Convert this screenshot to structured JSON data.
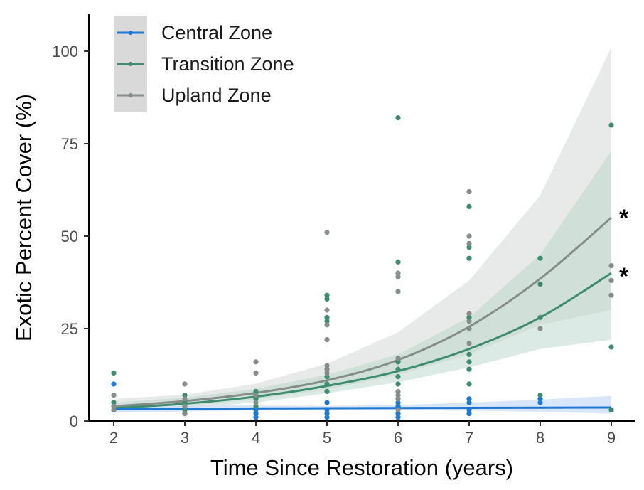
{
  "chart_data": {
    "type": "scatter",
    "title": "",
    "xlabel": "Time Since Restoration (years)",
    "ylabel": "Exotic Percent Cover (%)",
    "xlim": [
      1.7,
      9.3
    ],
    "ylim": [
      0,
      108
    ],
    "x_ticks": [
      2,
      3,
      4,
      5,
      6,
      7,
      8,
      9
    ],
    "y_ticks": [
      0,
      25,
      50,
      75,
      100
    ],
    "grid": false,
    "legend_position": "top-left",
    "series": [
      {
        "name": "Central Zone",
        "color": "#1f78d1",
        "points": [
          [
            2,
            10
          ],
          [
            2,
            3
          ],
          [
            3,
            2
          ],
          [
            3,
            3
          ],
          [
            4,
            1
          ],
          [
            4,
            2
          ],
          [
            4,
            3
          ],
          [
            5,
            1
          ],
          [
            5,
            2
          ],
          [
            5,
            3
          ],
          [
            5,
            5
          ],
          [
            5,
            10
          ],
          [
            6,
            1
          ],
          [
            6,
            2
          ],
          [
            6,
            4
          ],
          [
            6,
            5
          ],
          [
            6,
            16
          ],
          [
            7,
            2
          ],
          [
            7,
            3
          ],
          [
            7,
            5
          ],
          [
            7,
            6
          ],
          [
            8,
            5
          ],
          [
            8,
            6
          ],
          [
            9,
            3
          ]
        ],
        "fit": [
          [
            2,
            3.3
          ],
          [
            3,
            3.35
          ],
          [
            4,
            3.4
          ],
          [
            5,
            3.45
          ],
          [
            6,
            3.5
          ],
          [
            7,
            3.55
          ],
          [
            8,
            3.6
          ],
          [
            9,
            3.65
          ]
        ],
        "ci_low": [
          [
            2,
            2.2
          ],
          [
            3,
            2.6
          ],
          [
            4,
            2.9
          ],
          [
            5,
            3.0
          ],
          [
            6,
            3.0
          ],
          [
            7,
            2.8
          ],
          [
            8,
            2.5
          ],
          [
            9,
            2.0
          ]
        ],
        "ci_high": [
          [
            2,
            4.8
          ],
          [
            3,
            4.4
          ],
          [
            4,
            4.2
          ],
          [
            5,
            4.1
          ],
          [
            6,
            4.3
          ],
          [
            7,
            5.0
          ],
          [
            8,
            5.8
          ],
          [
            9,
            6.8
          ]
        ]
      },
      {
        "name": "Transition Zone",
        "color": "#3d8c6e",
        "points": [
          [
            2,
            13
          ],
          [
            2,
            5
          ],
          [
            3,
            7
          ],
          [
            3,
            5
          ],
          [
            3,
            3
          ],
          [
            4,
            8
          ],
          [
            4,
            6
          ],
          [
            4,
            4
          ],
          [
            5,
            34
          ],
          [
            5,
            33
          ],
          [
            5,
            28
          ],
          [
            5,
            27
          ],
          [
            5,
            12
          ],
          [
            5,
            10
          ],
          [
            5,
            8
          ],
          [
            6,
            82
          ],
          [
            6,
            43
          ],
          [
            6,
            16
          ],
          [
            6,
            14
          ],
          [
            6,
            12
          ],
          [
            6,
            10
          ],
          [
            7,
            58
          ],
          [
            7,
            47
          ],
          [
            7,
            44
          ],
          [
            7,
            28
          ],
          [
            7,
            18
          ],
          [
            7,
            16
          ],
          [
            7,
            14
          ],
          [
            7,
            10
          ],
          [
            8,
            44
          ],
          [
            8,
            37
          ],
          [
            8,
            28
          ],
          [
            8,
            7
          ],
          [
            9,
            80
          ],
          [
            9,
            20
          ],
          [
            9,
            3
          ]
        ],
        "fit": [
          [
            2,
            3.5
          ],
          [
            3,
            4.7
          ],
          [
            4,
            6.6
          ],
          [
            5,
            9.5
          ],
          [
            6,
            13.5
          ],
          [
            7,
            19.5
          ],
          [
            8,
            28
          ],
          [
            9,
            40
          ]
        ],
        "ci_low": [
          [
            2,
            2.5
          ],
          [
            3,
            3.5
          ],
          [
            4,
            5.0
          ],
          [
            5,
            7.5
          ],
          [
            6,
            10.5
          ],
          [
            7,
            14.5
          ],
          [
            8,
            19.5
          ],
          [
            9,
            22
          ]
        ],
        "ci_high": [
          [
            2,
            5.0
          ],
          [
            3,
            6.3
          ],
          [
            4,
            8.7
          ],
          [
            5,
            12.5
          ],
          [
            6,
            18
          ],
          [
            7,
            28
          ],
          [
            8,
            45
          ],
          [
            9,
            73
          ]
        ]
      },
      {
        "name": "Upland Zone",
        "color": "#858c89",
        "points": [
          [
            2,
            7
          ],
          [
            2,
            4
          ],
          [
            2,
            3
          ],
          [
            3,
            10
          ],
          [
            3,
            6
          ],
          [
            3,
            4
          ],
          [
            3,
            2
          ],
          [
            4,
            16
          ],
          [
            4,
            13
          ],
          [
            4,
            7
          ],
          [
            4,
            5
          ],
          [
            5,
            51
          ],
          [
            5,
            30
          ],
          [
            5,
            26
          ],
          [
            5,
            22
          ],
          [
            5,
            15
          ],
          [
            5,
            14
          ],
          [
            5,
            13
          ],
          [
            6,
            40
          ],
          [
            6,
            39
          ],
          [
            6,
            35
          ],
          [
            6,
            17
          ],
          [
            6,
            8
          ],
          [
            6,
            7
          ],
          [
            6,
            6
          ],
          [
            6,
            3
          ],
          [
            7,
            62
          ],
          [
            7,
            50
          ],
          [
            7,
            48
          ],
          [
            7,
            29
          ],
          [
            7,
            27
          ],
          [
            7,
            25
          ],
          [
            7,
            21
          ],
          [
            8,
            25
          ],
          [
            9,
            42
          ],
          [
            9,
            38
          ],
          [
            9,
            34
          ]
        ],
        "fit": [
          [
            2,
            4.0
          ],
          [
            3,
            5.4
          ],
          [
            4,
            7.6
          ],
          [
            5,
            11.0
          ],
          [
            6,
            16.5
          ],
          [
            7,
            25.5
          ],
          [
            8,
            38.5
          ],
          [
            9,
            55
          ]
        ],
        "ci_low": [
          [
            2,
            2.8
          ],
          [
            3,
            4.1
          ],
          [
            4,
            5.9
          ],
          [
            5,
            8.5
          ],
          [
            6,
            12.5
          ],
          [
            7,
            18
          ],
          [
            8,
            26
          ],
          [
            9,
            30
          ]
        ],
        "ci_high": [
          [
            2,
            6.0
          ],
          [
            3,
            7.1
          ],
          [
            4,
            10.1
          ],
          [
            5,
            15.5
          ],
          [
            6,
            24
          ],
          [
            7,
            38
          ],
          [
            8,
            61
          ],
          [
            9,
            101
          ]
        ]
      }
    ],
    "annotations": [
      {
        "text": "*",
        "series": "Upland Zone"
      },
      {
        "text": "*",
        "series": "Transition Zone"
      }
    ]
  }
}
